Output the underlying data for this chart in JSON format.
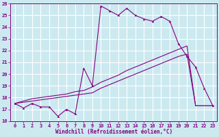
{
  "xlabel": "Windchill (Refroidissement éolien,°C)",
  "background_color": "#cce9f0",
  "grid_color": "#ffffff",
  "line_color": "#800080",
  "xlim": [
    -0.5,
    23.5
  ],
  "ylim": [
    16,
    26
  ],
  "yticks": [
    16,
    17,
    18,
    19,
    20,
    21,
    22,
    23,
    24,
    25,
    26
  ],
  "xticks": [
    0,
    1,
    2,
    3,
    4,
    5,
    6,
    7,
    8,
    9,
    10,
    11,
    12,
    13,
    14,
    15,
    16,
    17,
    18,
    19,
    20,
    21,
    22,
    23
  ],
  "line1_x": [
    0,
    1,
    2,
    3,
    4,
    5,
    6,
    7,
    8,
    9,
    10,
    11,
    12,
    13,
    14,
    15,
    16,
    17,
    18,
    19,
    20,
    21,
    22,
    23
  ],
  "line1_y": [
    17.5,
    17.1,
    17.5,
    17.2,
    17.2,
    16.4,
    17.0,
    16.6,
    20.5,
    19.0,
    25.8,
    25.4,
    25.0,
    25.6,
    25.0,
    24.7,
    24.5,
    24.9,
    24.5,
    22.6,
    21.5,
    20.6,
    18.8,
    17.3
  ],
  "line2_x": [
    0,
    1,
    2,
    3,
    4,
    5,
    6,
    7,
    8,
    9,
    10,
    11,
    12,
    13,
    14,
    15,
    16,
    17,
    18,
    19,
    20,
    21,
    22,
    23
  ],
  "line2_y": [
    17.5,
    17.6,
    17.7,
    17.8,
    17.9,
    18.0,
    18.1,
    18.2,
    18.3,
    18.4,
    18.8,
    19.1,
    19.4,
    19.7,
    20.0,
    20.3,
    20.6,
    20.9,
    21.2,
    21.5,
    21.7,
    17.3,
    17.3,
    17.3
  ],
  "line3_x": [
    0,
    1,
    2,
    3,
    4,
    5,
    6,
    7,
    8,
    9,
    10,
    11,
    12,
    13,
    14,
    15,
    16,
    17,
    18,
    19,
    20,
    21,
    22,
    23
  ],
  "line3_y": [
    17.5,
    17.7,
    17.9,
    18.0,
    18.1,
    18.2,
    18.3,
    18.5,
    18.6,
    18.9,
    19.3,
    19.6,
    19.9,
    20.3,
    20.6,
    20.9,
    21.2,
    21.5,
    21.8,
    22.1,
    22.4,
    17.3,
    17.3,
    17.3
  ],
  "tick_fontsize": 5,
  "xlabel_fontsize": 5.5
}
